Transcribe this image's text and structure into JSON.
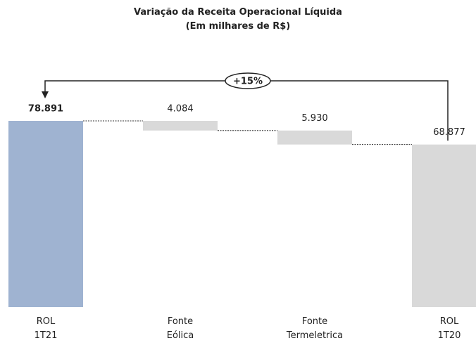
{
  "chart_data": {
    "type": "waterfall",
    "title": "Variação da Receita Operacional Líquida",
    "subtitle": "(Em milhares de R$)",
    "categories": [
      "ROL\n1T21",
      "Fonte\nEólica",
      "Fonte\nTermeletrica",
      "ROL\n1T20"
    ],
    "values": [
      78891,
      4084,
      5930,
      68877
    ],
    "value_labels": [
      "78.891",
      "4.084",
      "5.930",
      "68.877"
    ],
    "colors": [
      "#9fb3d1",
      "#d9d9d9",
      "#d9d9d9",
      "#d9d9d9"
    ],
    "annotation": "+15%"
  }
}
